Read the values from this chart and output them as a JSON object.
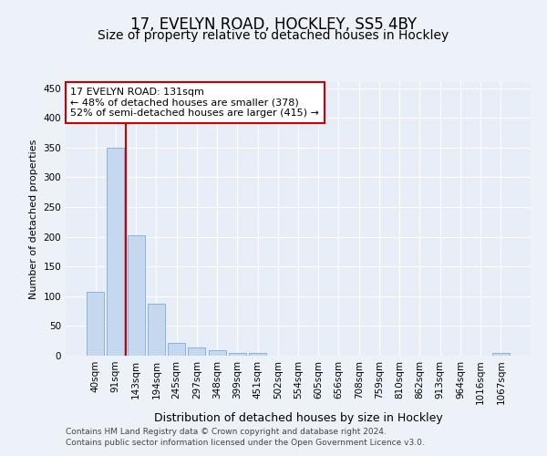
{
  "title1": "17, EVELYN ROAD, HOCKLEY, SS5 4BY",
  "title2": "Size of property relative to detached houses in Hockley",
  "xlabel": "Distribution of detached houses by size in Hockley",
  "ylabel": "Number of detached properties",
  "categories": [
    "40sqm",
    "91sqm",
    "143sqm",
    "194sqm",
    "245sqm",
    "297sqm",
    "348sqm",
    "399sqm",
    "451sqm",
    "502sqm",
    "554sqm",
    "605sqm",
    "656sqm",
    "708sqm",
    "759sqm",
    "810sqm",
    "862sqm",
    "913sqm",
    "964sqm",
    "1016sqm",
    "1067sqm"
  ],
  "values": [
    108,
    350,
    203,
    88,
    22,
    14,
    9,
    5,
    4,
    0,
    0,
    0,
    0,
    0,
    0,
    0,
    0,
    0,
    0,
    0,
    4
  ],
  "bar_color": "#c5d8f0",
  "bar_edge_color": "#7aabde",
  "reference_line_x": 1.5,
  "reference_line_color": "#cc0000",
  "annotation_text": "17 EVELYN ROAD: 131sqm\n← 48% of detached houses are smaller (378)\n52% of semi-detached houses are larger (415) →",
  "annotation_box_color": "#ffffff",
  "annotation_box_edge": "#cc0000",
  "ylim": [
    0,
    460
  ],
  "yticks": [
    0,
    50,
    100,
    150,
    200,
    250,
    300,
    350,
    400,
    450
  ],
  "footer1": "Contains HM Land Registry data © Crown copyright and database right 2024.",
  "footer2": "Contains public sector information licensed under the Open Government Licence v3.0.",
  "bg_color": "#edf2f9",
  "plot_bg_color": "#e8eef8",
  "grid_color": "#ffffff",
  "title1_fontsize": 12,
  "title2_fontsize": 10,
  "xlabel_fontsize": 9,
  "ylabel_fontsize": 8,
  "tick_fontsize": 7.5,
  "footer_fontsize": 6.5,
  "annot_fontsize": 8
}
